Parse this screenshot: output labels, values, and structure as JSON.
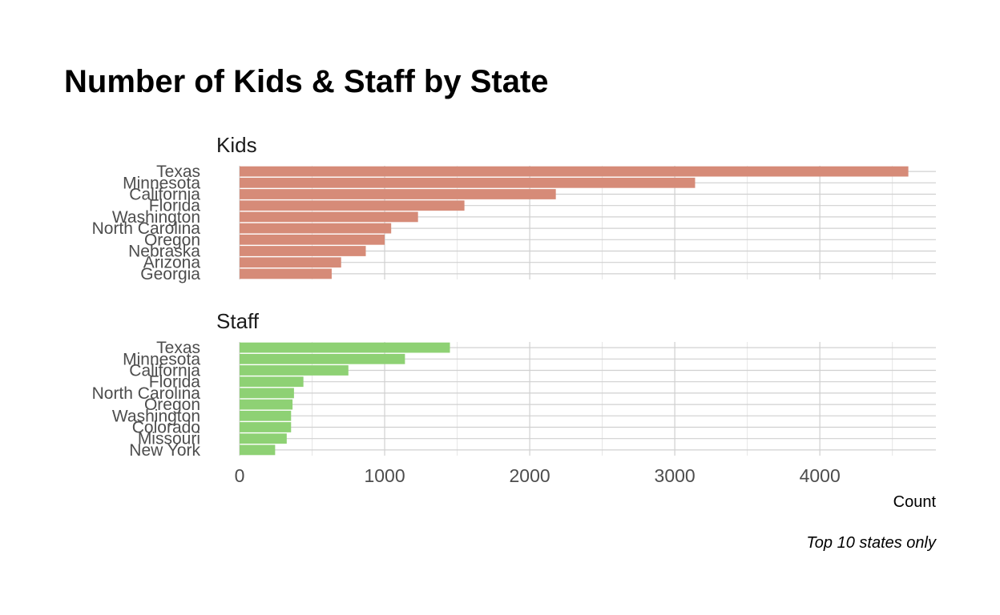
{
  "chart_data": {
    "type": "bar",
    "orientation": "horizontal",
    "title": "Number of Kids & Staff by State",
    "xlabel": "Count",
    "caption": "Top 10 states only",
    "xlim": [
      0,
      4800
    ],
    "x_ticks": [
      0,
      1000,
      2000,
      3000,
      4000
    ],
    "grid": true,
    "panels": [
      {
        "name": "Kids",
        "color": "#D68B78",
        "categories": [
          "Texas",
          "Minnesota",
          "California",
          "Florida",
          "Washington",
          "North Carolina",
          "Oregon",
          "Nebraska",
          "Arizona",
          "Georgia"
        ],
        "values": [
          4610,
          3140,
          2180,
          1550,
          1230,
          1045,
          1000,
          870,
          700,
          635
        ]
      },
      {
        "name": "Staff",
        "color": "#8ED174",
        "categories": [
          "Texas",
          "Minnesota",
          "California",
          "Florida",
          "North Carolina",
          "Oregon",
          "Washington",
          "Colorado",
          "Missouri",
          "New York"
        ],
        "values": [
          1450,
          1140,
          750,
          440,
          375,
          365,
          355,
          355,
          325,
          245
        ]
      }
    ]
  }
}
